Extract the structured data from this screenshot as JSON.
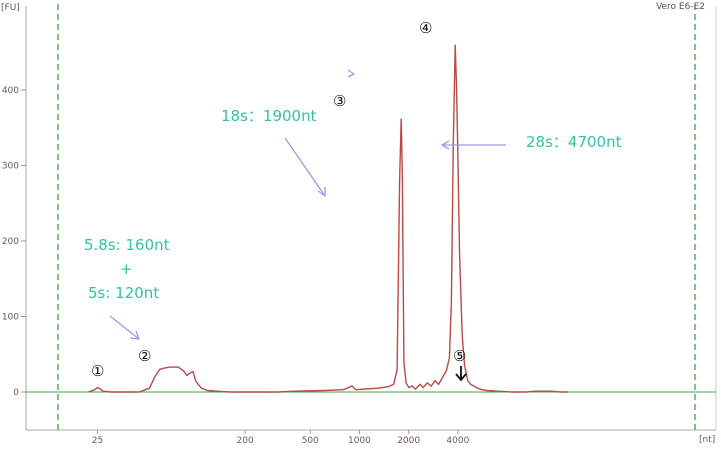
{
  "sample_name": "Vero E6-E2",
  "chart_data": {
    "type": "line",
    "y_unit": "[FU]",
    "x_unit": "[nt]",
    "ylim": [
      -20,
      520
    ],
    "y_ticks": [
      {
        "value": 0,
        "label": "0"
      },
      {
        "value": 100,
        "label": "100"
      },
      {
        "value": 200,
        "label": "200"
      },
      {
        "value": 300,
        "label": "300"
      },
      {
        "value": 400,
        "label": "400"
      }
    ],
    "x_ticks": [
      {
        "value": 25,
        "label": "25"
      },
      {
        "value": 200,
        "label": "200"
      },
      {
        "value": 500,
        "label": "500"
      },
      {
        "value": 1000,
        "label": "1000"
      },
      {
        "value": 2000,
        "label": "2000"
      },
      {
        "value": 4000,
        "label": "4000"
      }
    ],
    "markers_nt": [
      15,
      6000
    ],
    "series": [
      {
        "color": "#b94a48",
        "points": [
          [
            22,
            0
          ],
          [
            24,
            3
          ],
          [
            25,
            6
          ],
          [
            26,
            4
          ],
          [
            27,
            1
          ],
          [
            30,
            0
          ],
          [
            45,
            0
          ],
          [
            52,
            5
          ],
          [
            56,
            20
          ],
          [
            60,
            30
          ],
          [
            65,
            32
          ],
          [
            70,
            33
          ],
          [
            78,
            33
          ],
          [
            84,
            28
          ],
          [
            88,
            22
          ],
          [
            92,
            25
          ],
          [
            96,
            27
          ],
          [
            100,
            14
          ],
          [
            108,
            5
          ],
          [
            118,
            2
          ],
          [
            135,
            1
          ],
          [
            160,
            0
          ],
          [
            320,
            0
          ],
          [
            400,
            1
          ],
          [
            600,
            2
          ],
          [
            800,
            3
          ],
          [
            900,
            8
          ],
          [
            950,
            3
          ],
          [
            1100,
            4
          ],
          [
            1300,
            5
          ],
          [
            1500,
            7
          ],
          [
            1620,
            10
          ],
          [
            1700,
            30
          ],
          [
            1760,
            280
          ],
          [
            1800,
            362
          ],
          [
            1830,
            290
          ],
          [
            1870,
            40
          ],
          [
            1930,
            12
          ],
          [
            2000,
            6
          ],
          [
            2100,
            8
          ],
          [
            2200,
            4
          ],
          [
            2350,
            10
          ],
          [
            2450,
            6
          ],
          [
            2600,
            12
          ],
          [
            2750,
            8
          ],
          [
            2900,
            15
          ],
          [
            3050,
            10
          ],
          [
            3200,
            18
          ],
          [
            3400,
            28
          ],
          [
            3550,
            45
          ],
          [
            3650,
            120
          ],
          [
            3750,
            330
          ],
          [
            3850,
            460
          ],
          [
            3930,
            400
          ],
          [
            4000,
            310
          ],
          [
            4100,
            180
          ],
          [
            4250,
            75
          ],
          [
            4400,
            35
          ],
          [
            4600,
            15
          ],
          [
            4800,
            10
          ],
          [
            5000,
            8
          ],
          [
            5300,
            5
          ],
          [
            5600,
            3
          ],
          [
            6000,
            2
          ],
          [
            7000,
            1
          ],
          [
            8500,
            0
          ],
          [
            10500,
            0
          ],
          [
            12000,
            1
          ],
          [
            15000,
            1
          ],
          [
            17000,
            0
          ],
          [
            19000,
            0
          ]
        ]
      }
    ],
    "annotations": {
      "peak_5_8s_line1": "5.8s: 160nt",
      "peak_5_8s_plus": "+",
      "peak_5_8s_line2": "5s: 120nt",
      "peak_18s": "18s：1900nt",
      "peak_28s": "28s：4700nt"
    },
    "peak_labels": [
      {
        "id": "peak-1",
        "label": "①",
        "nt": 25
      },
      {
        "id": "peak-2",
        "label": "②",
        "nt": 70
      },
      {
        "id": "peak-3",
        "label": "③",
        "nt": 1800
      },
      {
        "id": "peak-4",
        "label": "④",
        "nt": 3860
      },
      {
        "id": "peak-5",
        "label": "⑤",
        "nt": 5000
      }
    ]
  }
}
